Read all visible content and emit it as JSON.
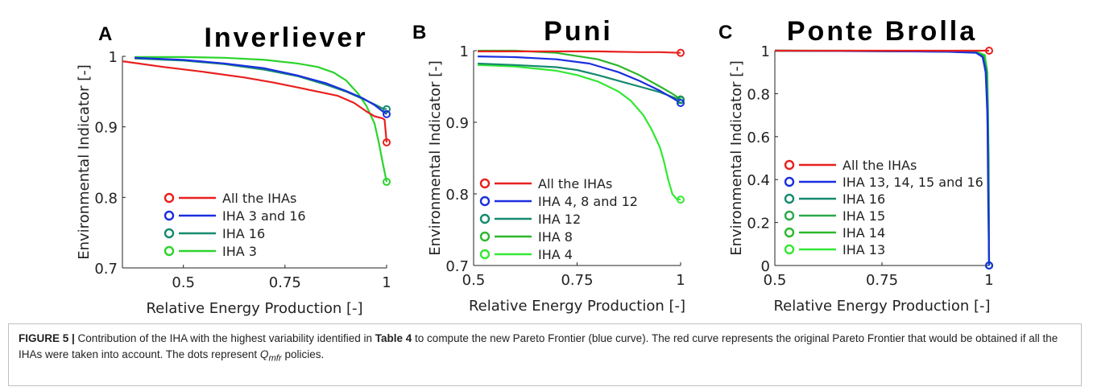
{
  "caption": {
    "label": "FIGURE 5 |",
    "text_1": " Contribution of the IHA with the highest variability identified in ",
    "table_ref": "Table 4",
    "text_2": " to compute the new Pareto Frontier (blue curve). The red curve represents the original Pareto Frontier that would be obtained if all the IHAs were taken into account. The dots represent ",
    "symbol": "Q",
    "symbol_sub": "mfr",
    "text_3": " policies."
  },
  "chart_data": [
    {
      "type": "line",
      "panel": "A",
      "title": "Inverliever",
      "xlabel": "Relative Energy Production [-]",
      "ylabel": "Environmental Indicator [-]",
      "xlim": [
        0.35,
        1.0
      ],
      "ylim": [
        0.7,
        1.0
      ],
      "xticks": [
        0.5,
        0.75,
        1
      ],
      "xtick_labels": [
        "0.5",
        "0.75",
        "1"
      ],
      "yticks": [
        0.7,
        0.8,
        0.9,
        1
      ],
      "ytick_labels": [
        "0.7",
        "0.8",
        "0.9",
        "1"
      ],
      "grid": false,
      "legend_position": "bottom-left",
      "series": [
        {
          "name": "All the IHAs",
          "color": "#e8201e",
          "x": [
            0.35,
            0.45,
            0.55,
            0.65,
            0.72,
            0.78,
            0.83,
            0.88,
            0.92,
            0.95,
            0.97,
            0.99,
            0.995,
            1.0
          ],
          "y": [
            0.993,
            0.985,
            0.978,
            0.97,
            0.963,
            0.956,
            0.95,
            0.944,
            0.934,
            0.922,
            0.915,
            0.912,
            0.91,
            0.878
          ],
          "end_point": [
            1.0,
            0.878
          ]
        },
        {
          "name": "IHA 3 and 16",
          "color": "#1a2fe0",
          "x": [
            0.38,
            0.5,
            0.6,
            0.7,
            0.78,
            0.85,
            0.9,
            0.94,
            0.97,
            0.99,
            1.0
          ],
          "y": [
            0.998,
            0.995,
            0.99,
            0.983,
            0.973,
            0.962,
            0.951,
            0.941,
            0.931,
            0.922,
            0.918
          ],
          "end_point": [
            1.0,
            0.918
          ]
        },
        {
          "name": "IHA 16",
          "color": "#158a6e",
          "x": [
            0.38,
            0.5,
            0.6,
            0.7,
            0.78,
            0.85,
            0.9,
            0.94,
            0.97,
            0.99,
            1.0
          ],
          "y": [
            0.997,
            0.994,
            0.989,
            0.981,
            0.972,
            0.96,
            0.95,
            0.94,
            0.932,
            0.926,
            0.925
          ],
          "end_point": [
            1.0,
            0.925
          ]
        },
        {
          "name": "IHA 3",
          "color": "#2bd42b",
          "x": [
            0.38,
            0.5,
            0.6,
            0.7,
            0.78,
            0.83,
            0.87,
            0.9,
            0.93,
            0.95,
            0.97,
            0.98,
            0.99,
            1.0
          ],
          "y": [
            0.999,
            0.999,
            0.998,
            0.995,
            0.99,
            0.985,
            0.977,
            0.966,
            0.947,
            0.93,
            0.905,
            0.88,
            0.85,
            0.822
          ],
          "end_point": [
            1.0,
            0.822
          ]
        }
      ]
    },
    {
      "type": "line",
      "panel": "B",
      "title": "Puni",
      "xlabel": "Relative Energy Production [-]",
      "ylabel": "Environmental Indicator [-]",
      "xlim": [
        0.5,
        1.0
      ],
      "ylim": [
        0.7,
        1.0
      ],
      "xticks": [
        0.5,
        0.75,
        1
      ],
      "xtick_labels": [
        "0.5",
        "0.75",
        "1"
      ],
      "yticks": [
        0.7,
        0.8,
        0.9,
        1
      ],
      "ytick_labels": [
        "0.7",
        "0.8",
        "0.9",
        "1"
      ],
      "grid": false,
      "legend_position": "bottom-left",
      "series": [
        {
          "name": "All the IHAs",
          "color": "#e8201e",
          "x": [
            0.51,
            0.6,
            0.7,
            0.8,
            0.9,
            0.95,
            1.0
          ],
          "y": [
            0.999,
            0.999,
            0.999,
            0.999,
            0.998,
            0.998,
            0.997
          ],
          "end_point": [
            1.0,
            0.997
          ]
        },
        {
          "name": "IHA 4, 8 and 12",
          "color": "#1a2fe0",
          "x": [
            0.51,
            0.6,
            0.7,
            0.78,
            0.85,
            0.9,
            0.95,
            0.98,
            1.0
          ],
          "y": [
            0.992,
            0.991,
            0.988,
            0.982,
            0.97,
            0.958,
            0.944,
            0.934,
            0.927
          ],
          "end_point": [
            1.0,
            0.927
          ]
        },
        {
          "name": "IHA 12",
          "color": "#158a6e",
          "x": [
            0.51,
            0.6,
            0.7,
            0.75,
            0.8,
            0.85,
            0.9,
            0.95,
            1.0
          ],
          "y": [
            0.982,
            0.98,
            0.977,
            0.973,
            0.966,
            0.958,
            0.95,
            0.942,
            0.931
          ],
          "end_point": [
            1.0,
            0.931
          ]
        },
        {
          "name": "IHA 8",
          "color": "#2bb82b",
          "x": [
            0.51,
            0.6,
            0.7,
            0.8,
            0.85,
            0.9,
            0.95,
            0.98,
            1.0
          ],
          "y": [
            1.0,
            1.0,
            0.997,
            0.988,
            0.979,
            0.966,
            0.95,
            0.94,
            0.932
          ],
          "end_point": [
            1.0,
            0.932
          ]
        },
        {
          "name": "IHA 4",
          "color": "#33e833",
          "x": [
            0.51,
            0.6,
            0.7,
            0.75,
            0.8,
            0.85,
            0.88,
            0.91,
            0.93,
            0.95,
            0.96,
            0.97,
            0.98,
            0.99,
            1.0
          ],
          "y": [
            0.98,
            0.978,
            0.972,
            0.966,
            0.957,
            0.943,
            0.93,
            0.91,
            0.89,
            0.865,
            0.845,
            0.82,
            0.8,
            0.793,
            0.792
          ],
          "end_point": [
            1.0,
            0.792
          ]
        }
      ]
    },
    {
      "type": "line",
      "panel": "C",
      "title": "Ponte Brolla",
      "xlabel": "Relative Energy Production [-]",
      "ylabel": "Environmental Indicator [-]",
      "xlim": [
        0.5,
        1.0
      ],
      "ylim": [
        0,
        1.0
      ],
      "xticks": [
        0.5,
        0.75,
        1
      ],
      "xtick_labels": [
        "0.5",
        "0.75",
        "1"
      ],
      "yticks": [
        0,
        0.2,
        0.4,
        0.6,
        0.8,
        1
      ],
      "ytick_labels": [
        "0",
        "0.2",
        "0.4",
        "0.6",
        "0.8",
        "1"
      ],
      "grid": false,
      "legend_position": "bottom-left",
      "series": [
        {
          "name": "All the IHAs",
          "color": "#e8201e",
          "x": [
            0.5,
            0.7,
            0.9,
            0.98,
            1.0
          ],
          "y": [
            1.0,
            1.0,
            1.0,
            1.0,
            1.0
          ],
          "end_point": [
            1.0,
            1.0
          ]
        },
        {
          "name": "IHA 13, 14, 15 and 16",
          "color": "#1a2fe0",
          "x": [
            0.5,
            0.7,
            0.9,
            0.97,
            0.985,
            0.992,
            0.996,
            0.998,
            1.0
          ],
          "y": [
            1.0,
            0.998,
            0.995,
            0.99,
            0.97,
            0.9,
            0.7,
            0.3,
            0.0
          ],
          "end_point": [
            1.0,
            0.0
          ]
        },
        {
          "name": "IHA 16",
          "color": "#158a6e",
          "x": [
            0.5,
            0.7,
            0.9,
            0.97,
            0.985,
            0.993,
            0.997,
            0.999,
            1.0
          ],
          "y": [
            1.0,
            0.998,
            0.996,
            0.992,
            0.975,
            0.92,
            0.75,
            0.35,
            0.0
          ],
          "end_point": [
            1.0,
            0.0
          ]
        },
        {
          "name": "IHA 15",
          "color": "#2aa84a",
          "x": [
            0.5,
            0.7,
            0.9,
            0.97,
            0.986,
            0.994,
            0.998,
            1.0
          ],
          "y": [
            1.0,
            0.999,
            0.996,
            0.992,
            0.97,
            0.88,
            0.5,
            0.0
          ],
          "end_point": [
            1.0,
            0.0
          ]
        },
        {
          "name": "IHA 14",
          "color": "#2bb82b",
          "x": [
            0.5,
            0.7,
            0.9,
            0.97,
            0.988,
            0.995,
            0.998,
            1.0
          ],
          "y": [
            1.0,
            0.999,
            0.997,
            0.994,
            0.975,
            0.9,
            0.55,
            0.0
          ],
          "end_point": [
            1.0,
            0.0
          ]
        },
        {
          "name": "IHA 13",
          "color": "#33e833",
          "x": [
            0.5,
            0.68,
            0.7,
            0.9,
            0.97,
            0.99,
            0.996,
            0.999,
            1.0
          ],
          "y": [
            1.0,
            1.0,
            0.999,
            0.997,
            0.995,
            0.98,
            0.9,
            0.5,
            0.0
          ],
          "end_point": [
            1.0,
            0.0
          ]
        }
      ]
    }
  ]
}
